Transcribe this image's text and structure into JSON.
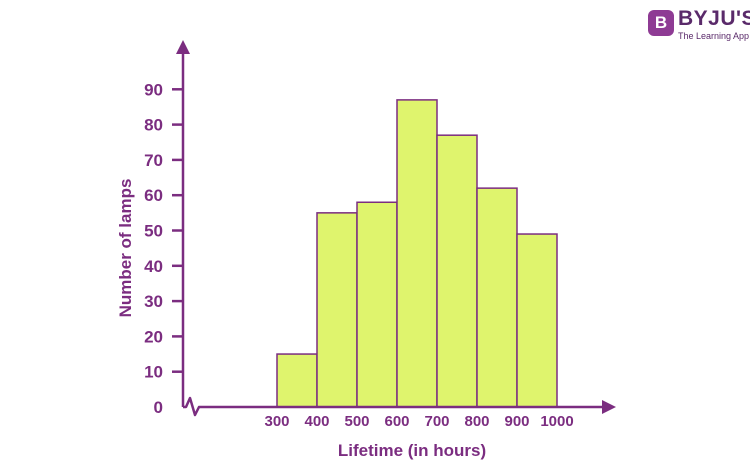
{
  "logo": {
    "mark": "B",
    "name": "BYJU'S",
    "tagline": "The Learning App"
  },
  "colors": {
    "axis": "#7b2d80",
    "bar_fill": "#dff46d",
    "bar_stroke": "#7b2d80"
  },
  "chart_data": {
    "type": "bar",
    "title": "",
    "xlabel": "Lifetime (in hours)",
    "ylabel": "Number of lamps",
    "x_ticks": [
      "300",
      "400",
      "500",
      "600",
      "700",
      "800",
      "900",
      "1000"
    ],
    "y_ticks": [
      "0",
      "10",
      "20",
      "30",
      "40",
      "50",
      "60",
      "70",
      "80",
      "90"
    ],
    "categories": [
      "300-400",
      "400-500",
      "500-600",
      "600-700",
      "700-800",
      "800-900",
      "900-1000"
    ],
    "bins": [
      [
        300,
        400
      ],
      [
        400,
        500
      ],
      [
        500,
        600
      ],
      [
        600,
        700
      ],
      [
        700,
        800
      ],
      [
        800,
        900
      ],
      [
        900,
        1000
      ]
    ],
    "values": [
      15,
      55,
      58,
      87,
      77,
      62,
      49
    ],
    "ylim": [
      0,
      90
    ],
    "x_axis_break": true,
    "grid": false,
    "legend": "none"
  }
}
